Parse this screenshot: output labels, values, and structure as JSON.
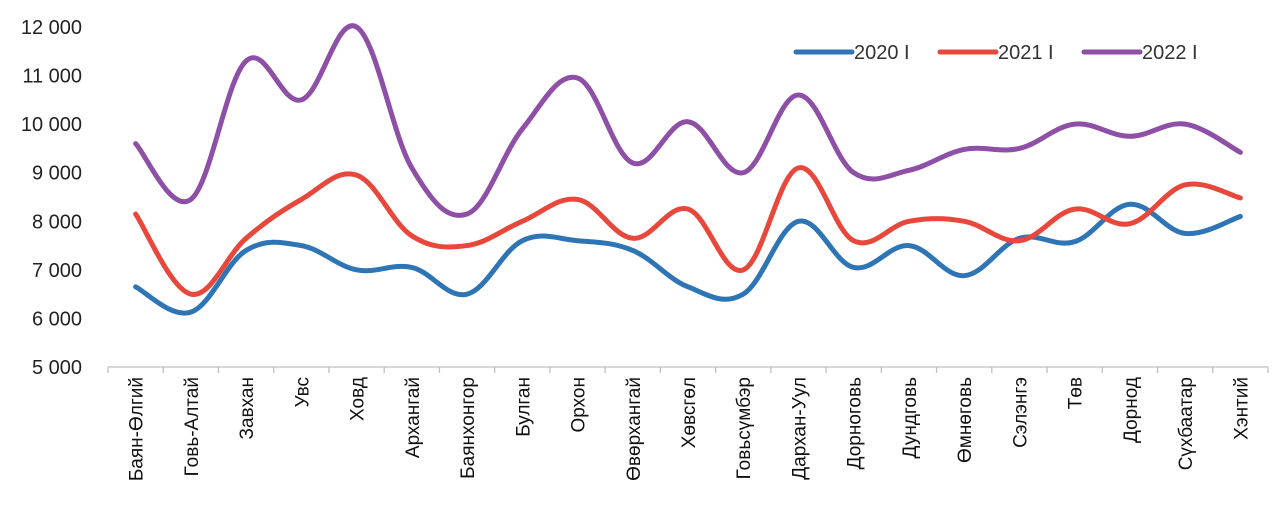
{
  "chart_data": {
    "type": "line",
    "smooth": true,
    "categories": [
      "Баян-Өлгий",
      "Говь-Алтай",
      "Завхан",
      "Увс",
      "Ховд",
      "Архангай",
      "Баянхонгор",
      "Булган",
      "Орхон",
      "Өвөрхангай",
      "Хөвсгөл",
      "Говьсүмбэр",
      "Дархан-Уул",
      "Дорноговь",
      "Дундговь",
      "Өмнөговь",
      "Сэлэнгэ",
      "Төв",
      "Дорнод",
      "Сүхбаатар",
      "Хэнтий"
    ],
    "series": [
      {
        "name": "2020 I",
        "color": "#2E75B6",
        "values": [
          6650,
          6130,
          7400,
          7500,
          7000,
          7050,
          6500,
          7600,
          7600,
          7400,
          6650,
          6500,
          8000,
          7050,
          7500,
          6880,
          7650,
          7580,
          8350,
          7750,
          8100
        ]
      },
      {
        "name": "2021 I",
        "color": "#E8483B",
        "values": [
          8150,
          6500,
          7650,
          8450,
          8950,
          7700,
          7500,
          8000,
          8450,
          7650,
          8250,
          7000,
          9100,
          7600,
          8000,
          8000,
          7600,
          8250,
          7950,
          8750,
          8480
        ]
      },
      {
        "name": "2022 I",
        "color": "#8E4FA6",
        "values": [
          9600,
          8450,
          11300,
          10500,
          12000,
          9100,
          8150,
          9900,
          10950,
          9200,
          10050,
          9000,
          10600,
          9000,
          9050,
          9480,
          9500,
          10000,
          9750,
          10000,
          9420
        ]
      }
    ],
    "y_axis": {
      "min": 5000,
      "max": 12000,
      "step": 1000,
      "tick_labels": [
        "5 000",
        "6 000",
        "7 000",
        "8 000",
        "9 000",
        "10 000",
        "11 000",
        "12 000"
      ]
    },
    "grid": false,
    "legend_position": "top-right",
    "title": "",
    "xlabel": "",
    "ylabel": ""
  }
}
